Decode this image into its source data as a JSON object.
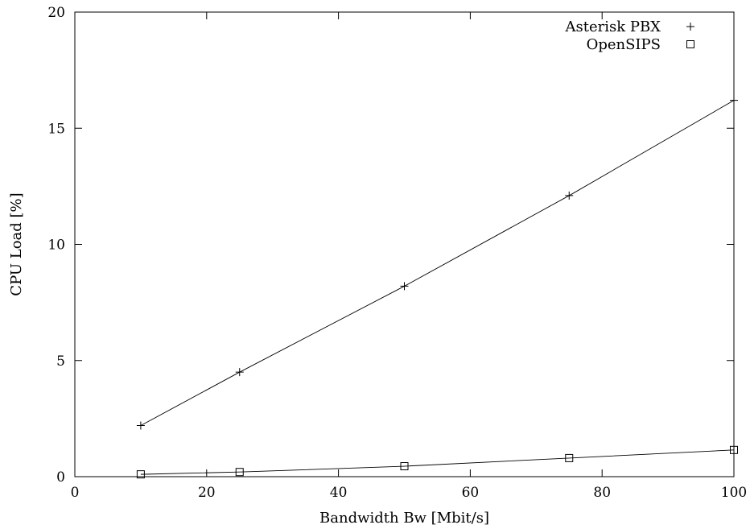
{
  "chart_data": {
    "type": "line",
    "title": "",
    "xlabel": "Bandwidth Bw [Mbit/s]",
    "ylabel": "CPU Load [%]",
    "xlim": [
      0,
      100
    ],
    "ylim": [
      0,
      20
    ],
    "xticks": [
      0,
      20,
      40,
      60,
      80,
      100
    ],
    "yticks": [
      0,
      5,
      10,
      15,
      20
    ],
    "x_tick_labels": [
      "0",
      "20",
      "40",
      "60",
      "80",
      "100"
    ],
    "y_tick_labels": [
      "0",
      "5",
      "10",
      "15",
      "20"
    ],
    "grid": false,
    "legend_position": "top-right",
    "series": [
      {
        "name": "Asterisk PBX",
        "marker": "plus",
        "x": [
          10,
          25,
          50,
          75,
          100
        ],
        "y": [
          2.2,
          4.5,
          8.2,
          12.1,
          16.2
        ]
      },
      {
        "name": "OpenSIPS",
        "marker": "square",
        "x": [
          10,
          25,
          50,
          75,
          100
        ],
        "y": [
          0.1,
          0.2,
          0.45,
          0.8,
          1.15
        ]
      }
    ]
  }
}
